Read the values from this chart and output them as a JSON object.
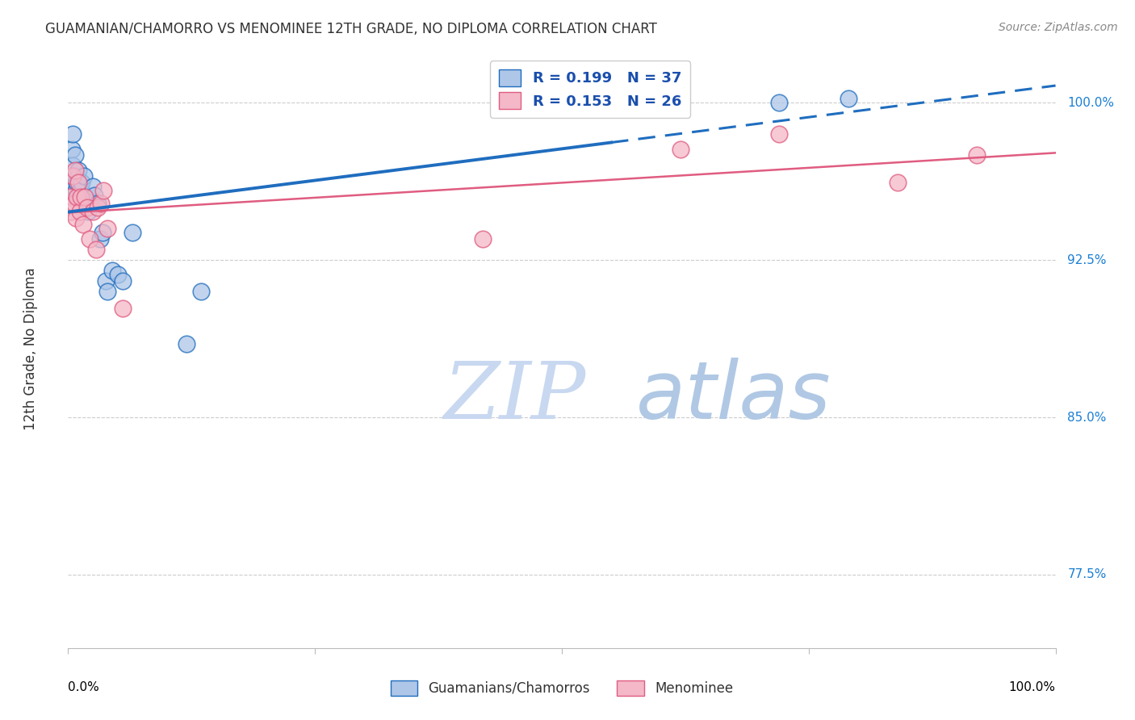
{
  "title": "GUAMANIAN/CHAMORRO VS MENOMINEE 12TH GRADE, NO DIPLOMA CORRELATION CHART",
  "source": "Source: ZipAtlas.com",
  "ylabel": "12th Grade, No Diploma",
  "yticks": [
    77.5,
    85.0,
    92.5,
    100.0
  ],
  "ytick_labels": [
    "77.5%",
    "85.0%",
    "92.5%",
    "100.0%"
  ],
  "xlim": [
    0.0,
    1.0
  ],
  "ylim": [
    74.0,
    102.5
  ],
  "guam_r": 0.199,
  "guam_n": 37,
  "menominee_r": 0.153,
  "menominee_n": 26,
  "guam_color": "#aec6e8",
  "guam_line_color": "#1f6dbf",
  "menominee_color": "#f4b8c8",
  "menominee_line_color": "#e05c80",
  "guam_points_x": [
    0.002,
    0.003,
    0.004,
    0.005,
    0.005,
    0.006,
    0.007,
    0.007,
    0.008,
    0.009,
    0.01,
    0.01,
    0.011,
    0.012,
    0.013,
    0.014,
    0.015,
    0.016,
    0.018,
    0.02,
    0.022,
    0.025,
    0.027,
    0.03,
    0.032,
    0.035,
    0.038,
    0.04,
    0.045,
    0.05,
    0.055,
    0.065,
    0.12,
    0.135,
    0.62,
    0.72,
    0.79
  ],
  "guam_points_y": [
    95.5,
    96.5,
    97.8,
    97.0,
    98.5,
    96.0,
    96.5,
    97.5,
    95.8,
    96.2,
    95.5,
    96.8,
    95.5,
    96.0,
    95.8,
    96.2,
    95.5,
    96.5,
    95.0,
    94.8,
    95.2,
    96.0,
    95.6,
    95.2,
    93.5,
    93.8,
    91.5,
    91.0,
    92.0,
    91.8,
    91.5,
    93.8,
    88.5,
    91.0,
    100.2,
    100.0,
    100.2
  ],
  "menominee_points_x": [
    0.002,
    0.003,
    0.005,
    0.006,
    0.007,
    0.008,
    0.009,
    0.01,
    0.012,
    0.013,
    0.015,
    0.017,
    0.019,
    0.022,
    0.025,
    0.028,
    0.03,
    0.033,
    0.036,
    0.04,
    0.055,
    0.42,
    0.62,
    0.72,
    0.84,
    0.92
  ],
  "menominee_points_y": [
    95.5,
    94.8,
    96.5,
    95.2,
    96.8,
    94.5,
    95.5,
    96.2,
    94.8,
    95.5,
    94.2,
    95.5,
    95.0,
    93.5,
    94.8,
    93.0,
    95.0,
    95.2,
    95.8,
    94.0,
    90.2,
    93.5,
    97.8,
    98.5,
    96.2,
    97.5
  ],
  "watermark_zip": "ZIP",
  "watermark_atlas": "atlas",
  "watermark_color_zip": "#c8d8f0",
  "watermark_color_atlas": "#b0c8e4",
  "background_color": "white",
  "grid_color": "#cccccc",
  "title_color": "#333333",
  "source_color": "#888888",
  "axis_label_color": "#333333",
  "tick_label_color": "#1a7fd4",
  "legend_label_color": "#1a4fad",
  "bottom_legend_color": "#333333"
}
